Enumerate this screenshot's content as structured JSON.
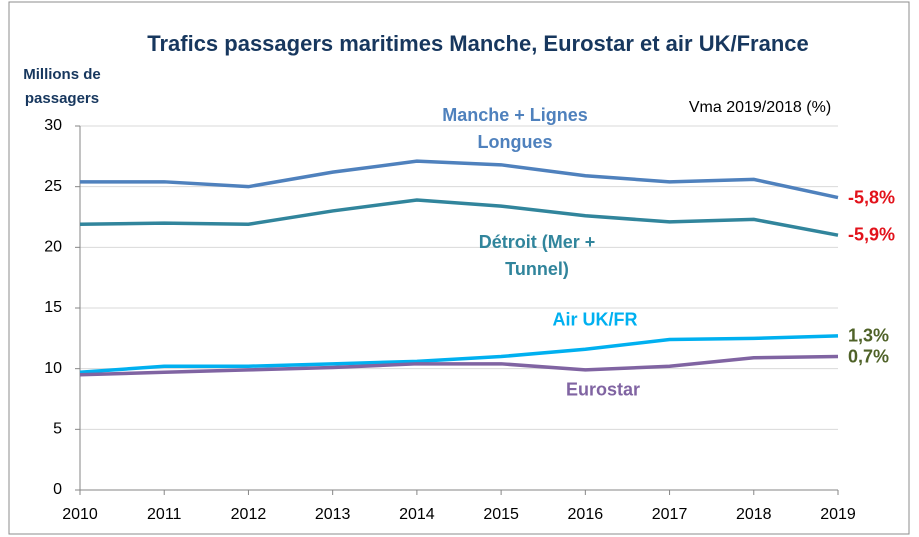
{
  "chart_data": {
    "type": "line",
    "title": "Trafics passagers maritimes Manche, Eurostar et air UK/France",
    "y_label": "Millions de passagers",
    "annotation": "Vma 2019/2018 (%)",
    "x": [
      2010,
      2011,
      2012,
      2013,
      2014,
      2015,
      2016,
      2017,
      2018,
      2019
    ],
    "xlim": [
      2010,
      2019
    ],
    "xticks": [
      2010,
      2011,
      2012,
      2013,
      2014,
      2015,
      2016,
      2017,
      2018,
      2019
    ],
    "ylim": [
      0,
      30
    ],
    "yticks": [
      0,
      5,
      10,
      15,
      20,
      25,
      30
    ],
    "grid": true,
    "series": [
      {
        "name": "Manche + Lignes Longues",
        "color": "#4f81bd",
        "values": [
          25.4,
          25.4,
          25.0,
          26.2,
          27.1,
          26.8,
          25.9,
          25.4,
          25.6,
          24.1
        ],
        "change": -5.8,
        "change_label": "-5,8%",
        "change_color": "#e2121b"
      },
      {
        "name": "Détroit (Mer + Tunnel)",
        "color": "#31859c",
        "values": [
          21.9,
          22.0,
          21.9,
          23.0,
          23.9,
          23.4,
          22.6,
          22.1,
          22.3,
          21.0
        ],
        "change": -5.9,
        "change_label": "-5,9%",
        "change_color": "#e2121b"
      },
      {
        "name": "Air UK/FR",
        "color": "#00b0f0",
        "values": [
          9.7,
          10.2,
          10.2,
          10.4,
          10.6,
          11.0,
          11.6,
          12.4,
          12.5,
          12.7
        ],
        "change": 1.3,
        "change_label": "1,3%",
        "change_color": "#4f6228"
      },
      {
        "name": "Eurostar",
        "color": "#8064a2",
        "values": [
          9.5,
          9.7,
          9.9,
          10.1,
          10.4,
          10.4,
          9.9,
          10.2,
          10.9,
          11.0
        ],
        "change": 0.7,
        "change_label": "0,7%",
        "change_color": "#4f6228"
      }
    ]
  }
}
